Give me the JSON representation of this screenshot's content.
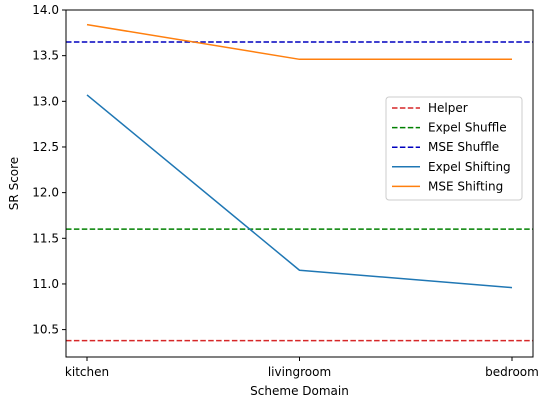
{
  "chart_data": {
    "type": "line",
    "title": "",
    "xlabel": "Scheme Domain",
    "ylabel": "SR Score",
    "categories": [
      "kitchen",
      "livingroom",
      "bedroom"
    ],
    "ylim": [
      10.2,
      14.0
    ],
    "yticks": [
      "10.5",
      "11.0",
      "11.5",
      "12.0",
      "12.5",
      "13.0",
      "13.5",
      "14.0"
    ],
    "grid": false,
    "legend_position": "center-right",
    "reference_lines": [
      {
        "name": "Helper",
        "value": 10.38,
        "color": "#d62728",
        "style": "dashed"
      },
      {
        "name": "Expel Shuffle",
        "value": 11.6,
        "color": "#008000",
        "style": "dashed"
      },
      {
        "name": "MSE Shuffle",
        "value": 13.65,
        "color": "#0000bf",
        "style": "dashed"
      }
    ],
    "series": [
      {
        "name": "Expel Shifting",
        "values": [
          13.07,
          11.15,
          10.96
        ],
        "color": "#1f77b4"
      },
      {
        "name": "MSE Shifting",
        "values": [
          13.84,
          13.46,
          13.46
        ],
        "color": "#ff7f0e"
      }
    ]
  }
}
